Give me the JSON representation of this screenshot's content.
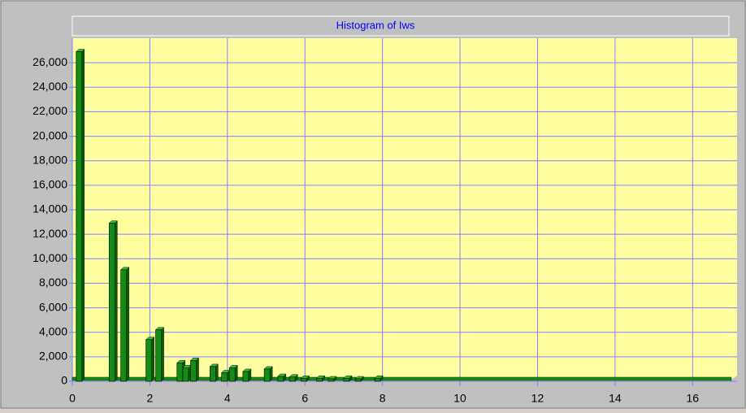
{
  "chart_data": {
    "type": "bar",
    "title": "Histogram of Iws",
    "x": [
      0.1,
      0.95,
      1.25,
      1.9,
      2.15,
      2.7,
      2.85,
      3.05,
      3.55,
      3.85,
      4.05,
      4.4,
      4.95,
      5.3,
      5.6,
      5.9,
      6.3,
      6.6,
      7.0,
      7.3,
      7.8
    ],
    "values": [
      26900,
      12900,
      9100,
      3400,
      4200,
      1500,
      1100,
      1700,
      1200,
      700,
      1100,
      800,
      1000,
      400,
      350,
      250,
      250,
      200,
      250,
      200,
      250
    ],
    "color": "#158a15",
    "xlim": [
      0,
      17
    ],
    "xticks": [
      0,
      2,
      4,
      6,
      8,
      10,
      12,
      14,
      16
    ],
    "ylim": [
      0,
      28000
    ],
    "yticks": [
      0,
      {
        "value": 2000,
        "label": "2,000"
      },
      {
        "value": 4000,
        "label": "4,000"
      },
      {
        "value": 6000,
        "label": "6,000"
      },
      {
        "value": 8000,
        "label": "8,000"
      },
      {
        "value": 10000,
        "label": "10,000"
      },
      {
        "value": 12000,
        "label": "12,000"
      },
      {
        "value": 14000,
        "label": "14,000"
      },
      {
        "value": 16000,
        "label": "16,000"
      },
      {
        "value": 18000,
        "label": "18,000"
      },
      {
        "value": 20000,
        "label": "20,000"
      },
      {
        "value": 22000,
        "label": "22,000"
      },
      {
        "value": 24000,
        "label": "24,000"
      },
      {
        "value": 26000,
        "label": "26,000"
      }
    ],
    "grid": true
  }
}
